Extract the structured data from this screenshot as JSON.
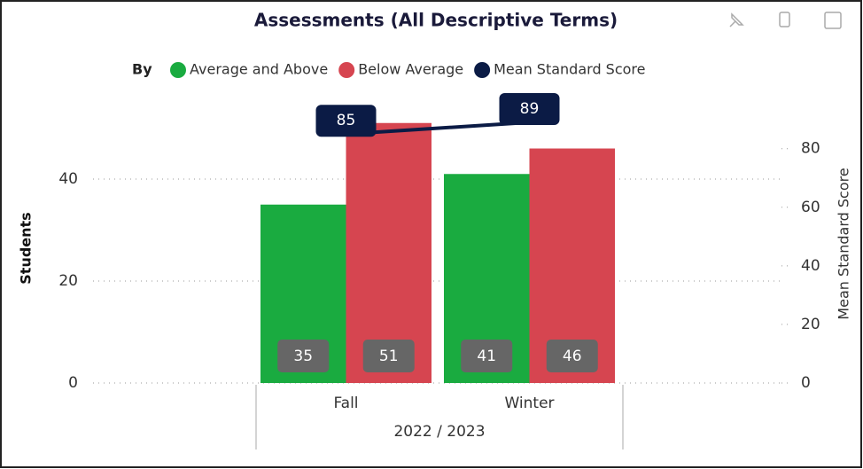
{
  "chart_data": {
    "type": "bar_line_combo",
    "title": "Assessments (All Descriptive Terms)",
    "legend_title": "By",
    "categories": [
      "Fall",
      "Winter"
    ],
    "category_group": "2022 / 2023",
    "y_label": "Students",
    "y2_label": "Mean Standard Score",
    "ylim": [
      0,
      54
    ],
    "yticks": [
      0,
      20,
      40
    ],
    "y2lim": [
      0,
      94
    ],
    "y2ticks": [
      0,
      20,
      40,
      60,
      80
    ],
    "grid": true,
    "series": [
      {
        "name": "Average and Above",
        "color": "#1aab40",
        "type": "bar",
        "axis": "y",
        "values": [
          35,
          41
        ]
      },
      {
        "name": "Below Average",
        "color": "#d64550",
        "type": "bar",
        "axis": "y",
        "values": [
          51,
          46
        ]
      },
      {
        "name": "Mean Standard Score",
        "color": "#0b1b45",
        "type": "line",
        "axis": "y2",
        "values": [
          85,
          89
        ]
      }
    ]
  }
}
